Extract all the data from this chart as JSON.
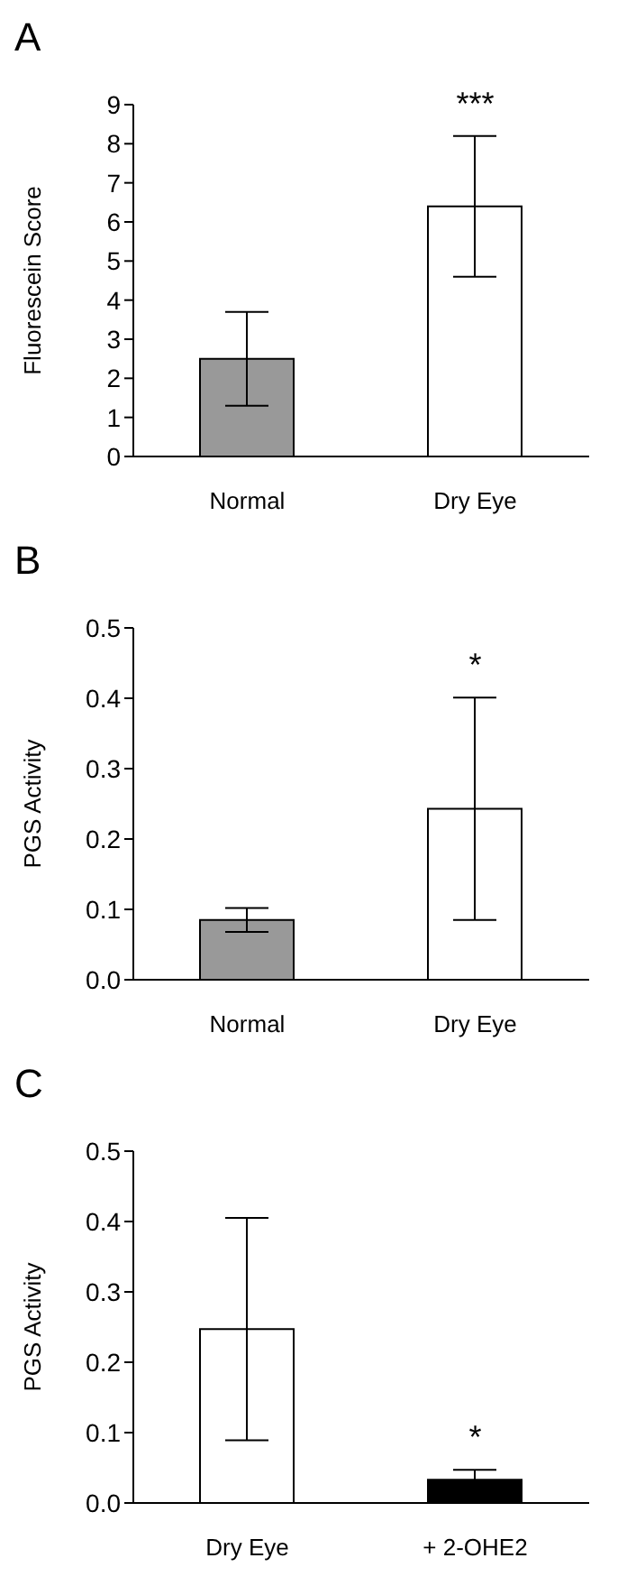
{
  "chart_data": [
    {
      "type": "bar",
      "title": "A",
      "ylabel": "Fluorescein Score",
      "categories": [
        "Normal",
        "Dry Eye"
      ],
      "values": [
        2.5,
        6.4
      ],
      "errors": [
        1.2,
        1.8
      ],
      "colors": [
        "#999999",
        "#ffffff"
      ],
      "ylim": [
        0,
        9
      ],
      "yticks": [
        0,
        1,
        2,
        3,
        4,
        5,
        6,
        7,
        8,
        9
      ],
      "grid": false,
      "legend": false,
      "annotations": [
        "***"
      ]
    },
    {
      "type": "bar",
      "title": "B",
      "ylabel": "PGS Activity",
      "categories": [
        "Normal",
        "Dry Eye"
      ],
      "values": [
        0.085,
        0.243
      ],
      "errors": [
        0.017,
        0.158
      ],
      "colors": [
        "#999999",
        "#ffffff"
      ],
      "ylim": [
        0,
        0.5
      ],
      "yticks": [
        {
          "value": 0,
          "label": "0.0"
        },
        {
          "value": 0.1,
          "label": "0.1"
        },
        {
          "value": 0.2,
          "label": "0.2"
        },
        {
          "value": 0.3,
          "label": "0.3"
        },
        {
          "value": 0.4,
          "label": "0.4"
        },
        {
          "value": 0.5,
          "label": "0.5"
        }
      ],
      "grid": false,
      "legend": false,
      "annotations": [
        "*"
      ]
    },
    {
      "type": "bar",
      "title": "C",
      "ylabel": "PGS Activity",
      "categories": [
        "Dry Eye",
        "+ 2-OHE2"
      ],
      "values": [
        0.247,
        0.033
      ],
      "errors": [
        0.158,
        0.014
      ],
      "colors": [
        "#ffffff",
        "#000000"
      ],
      "ylim": [
        0,
        0.5
      ],
      "yticks": [
        {
          "value": 0,
          "label": "0.0"
        },
        {
          "value": 0.1,
          "label": "0.1"
        },
        {
          "value": 0.2,
          "label": "0.2"
        },
        {
          "value": 0.3,
          "label": "0.3"
        },
        {
          "value": 0.4,
          "label": "0.4"
        },
        {
          "value": 0.5,
          "label": "0.5"
        }
      ],
      "grid": false,
      "legend": false,
      "annotations": [
        "*"
      ]
    }
  ]
}
